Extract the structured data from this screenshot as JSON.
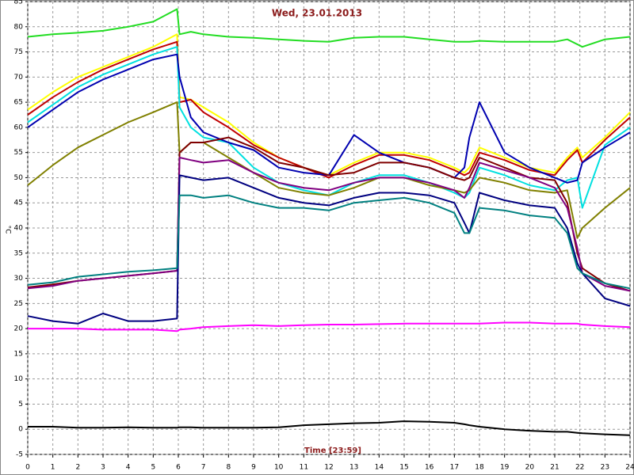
{
  "chart_data": {
    "type": "line",
    "title": "Wed, 23.01.2013",
    "xlabel": "Time [23:59]",
    "ylabel": "°C",
    "x": [
      0,
      1,
      2,
      3,
      4,
      5,
      5.95,
      6.05,
      6.5,
      7,
      8,
      9,
      10,
      11,
      12,
      13,
      14,
      15,
      16,
      17,
      17.4,
      17.6,
      18,
      19,
      20,
      21,
      21.5,
      21.9,
      22.1,
      23,
      24
    ],
    "xlim": [
      0,
      24
    ],
    "xticks": [
      0,
      1,
      2,
      3,
      4,
      5,
      6,
      7,
      8,
      9,
      10,
      11,
      12,
      13,
      14,
      15,
      16,
      17,
      18,
      19,
      20,
      21,
      22,
      23,
      24
    ],
    "ylim": [
      -5,
      85
    ],
    "yticks": [
      -5,
      0,
      5,
      10,
      15,
      20,
      25,
      30,
      35,
      40,
      45,
      50,
      55,
      60,
      65,
      70,
      75,
      80,
      85
    ],
    "grid": true,
    "series": [
      {
        "color": "#22dd22",
        "values": [
          78,
          78.5,
          78.8,
          79.2,
          80,
          81,
          83.5,
          78.5,
          79,
          78.5,
          78,
          77.8,
          77.5,
          77.2,
          77,
          77.8,
          78,
          78,
          77.5,
          77,
          77,
          77,
          77.2,
          77,
          77,
          77,
          77.5,
          76.5,
          76,
          77.5,
          78
        ]
      },
      {
        "color": "#ffff00",
        "values": [
          63.5,
          67,
          70,
          72,
          74,
          76,
          78.5,
          66,
          65.5,
          64,
          61,
          57,
          54,
          52,
          50.5,
          53,
          55,
          55,
          54,
          52,
          51,
          52,
          56,
          54,
          52,
          51,
          54,
          56,
          54,
          58,
          63
        ]
      },
      {
        "color": "#c00000",
        "values": [
          62.5,
          66,
          69,
          71.5,
          73.5,
          75.5,
          77,
          65,
          65.5,
          63,
          60,
          56.5,
          54,
          52,
          50,
          52.5,
          54.5,
          54.5,
          53.5,
          51.5,
          50.5,
          51,
          55,
          53.5,
          51.5,
          50.5,
          53.5,
          55.5,
          53,
          57.5,
          62
        ]
      },
      {
        "color": "#00e0e0",
        "values": [
          61,
          64.5,
          68,
          70.5,
          72.5,
          74.5,
          76,
          64,
          60,
          58,
          57,
          52,
          49,
          47.5,
          46.5,
          49,
          50.5,
          50.5,
          49,
          47,
          46,
          47,
          52,
          50.5,
          48.5,
          47.5,
          49.5,
          50,
          44,
          56.5,
          60
        ]
      },
      {
        "color": "#0000b0",
        "values": [
          60,
          63.5,
          67,
          69.5,
          71.5,
          73.5,
          74.5,
          70,
          62,
          59,
          57,
          55.5,
          52,
          51,
          50.5,
          58.5,
          55,
          53,
          52,
          50,
          52,
          58,
          65,
          55,
          52,
          50,
          49,
          49.5,
          53,
          56,
          59
        ]
      },
      {
        "color": "#808000",
        "values": [
          48.5,
          52.5,
          56,
          58.5,
          61,
          63,
          65,
          55,
          57,
          57,
          54,
          51,
          48,
          47,
          46.5,
          48,
          50,
          50,
          48.5,
          47.5,
          47,
          47.5,
          50,
          49,
          47.5,
          47,
          47.5,
          38,
          40,
          44,
          48
        ]
      },
      {
        "color": "#800000",
        "values": [
          28.2,
          28.8,
          29.5,
          30,
          30.5,
          31,
          31.5,
          55,
          57,
          57,
          58,
          56,
          53,
          52,
          50.5,
          51,
          53,
          53,
          52,
          50,
          49.5,
          50,
          54,
          52,
          50,
          49.5,
          45,
          35,
          32,
          29,
          27.5
        ]
      },
      {
        "color": "#800080",
        "values": [
          28,
          28.5,
          29.5,
          30,
          30.5,
          31,
          31.5,
          54,
          53.5,
          53,
          53.5,
          51,
          49,
          48,
          47.5,
          49,
          50,
          50,
          49,
          47.5,
          46,
          48,
          53,
          51.5,
          50,
          48,
          44,
          36,
          31,
          28.5,
          27.5
        ]
      },
      {
        "color": "#000080",
        "values": [
          22.5,
          21.5,
          21,
          23,
          21.5,
          21.5,
          22,
          50.5,
          50,
          49.5,
          50,
          48,
          46,
          45,
          44.5,
          46,
          47,
          47,
          46.5,
          45,
          41,
          39,
          47,
          45.5,
          44.5,
          44,
          40,
          33,
          31,
          26,
          24.5
        ]
      },
      {
        "color": "#008080",
        "values": [
          28.7,
          29.2,
          30.3,
          30.8,
          31.3,
          31.6,
          32,
          46.5,
          46.5,
          46,
          46.5,
          45,
          44,
          44,
          43.5,
          45,
          45.5,
          46,
          45,
          43,
          39,
          39,
          44,
          43.5,
          42.5,
          42,
          39,
          32,
          31,
          29,
          28
        ]
      },
      {
        "color": "#ff00ff",
        "values": [
          20,
          20,
          20,
          19.8,
          19.8,
          19.8,
          19.5,
          19.8,
          20,
          20.3,
          20.5,
          20.7,
          20.5,
          20.7,
          20.8,
          20.8,
          20.9,
          21,
          21,
          21,
          21,
          21,
          21,
          21.2,
          21.2,
          21,
          21,
          21,
          20.8,
          20.5,
          20.3
        ]
      },
      {
        "color": "#000000",
        "values": [
          0.5,
          0.5,
          0.3,
          0.3,
          0.4,
          0.3,
          0.3,
          0.4,
          0.4,
          0.3,
          0.3,
          0.3,
          0.4,
          0.8,
          1,
          1.2,
          1.3,
          1.6,
          1.5,
          1.3,
          1,
          0.8,
          0.5,
          0,
          -0.3,
          -0.5,
          -0.5,
          -0.7,
          -0.8,
          -1,
          -1.2
        ]
      }
    ]
  }
}
